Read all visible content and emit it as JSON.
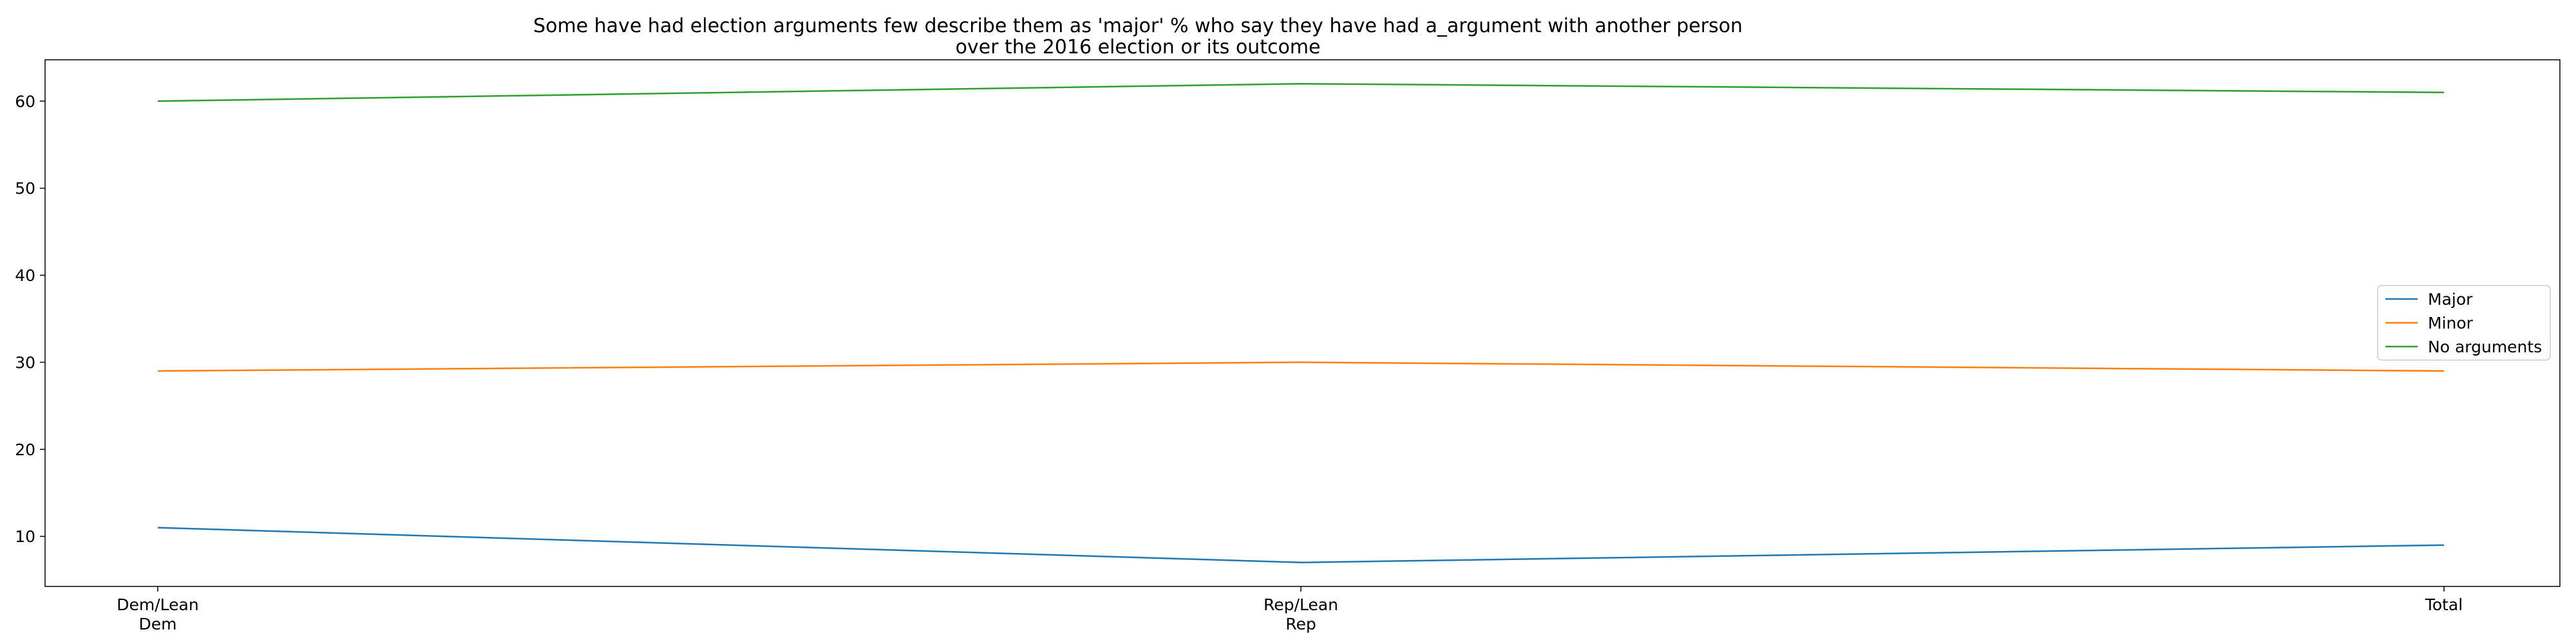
{
  "chart_data": {
    "type": "line",
    "title": "Some have had election arguments few describe them as 'major' % who say they have had a_argument with another person\nover the 2016 election or its outcome",
    "xlabel": "",
    "ylabel": "",
    "categories": [
      "Dem/Lean\nDem",
      "Rep/Lean\nRep",
      "Total"
    ],
    "series": [
      {
        "name": "Major",
        "values": [
          11,
          7,
          9
        ],
        "color": "#1f77b4"
      },
      {
        "name": "Minor",
        "values": [
          29,
          30,
          29
        ],
        "color": "#ff7f0e"
      },
      {
        "name": "No arguments",
        "values": [
          60,
          62,
          61
        ],
        "color": "#2ca02c"
      }
    ],
    "yticks": [
      10,
      20,
      30,
      40,
      50,
      60
    ],
    "ylim": [
      4.25,
      64.75
    ],
    "grid": false,
    "legend_position": "center-right"
  }
}
